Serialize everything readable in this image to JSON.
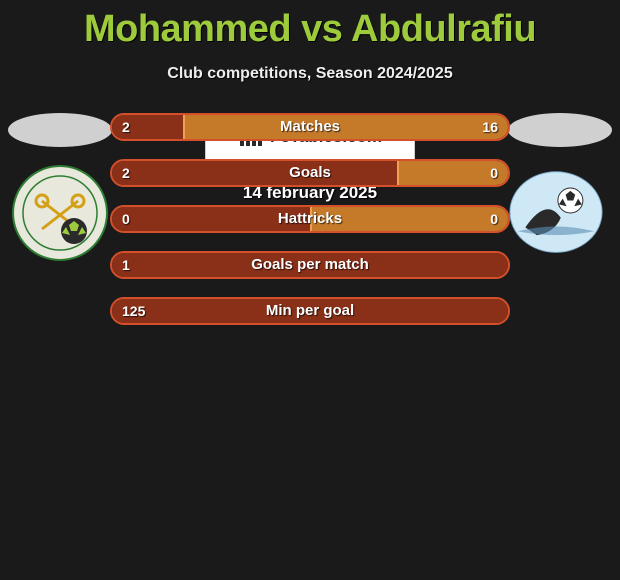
{
  "title": "Mohammed vs Abdulrafiu",
  "subtitle": "Club competitions, Season 2024/2025",
  "colors": {
    "left_border": "#d4502a",
    "left_fill": "#8a2f18",
    "right_border": "#f0a050",
    "right_fill": "#c57a2a",
    "accent": "#9ecb3c"
  },
  "rows": [
    {
      "label": "Matches",
      "left": "2",
      "right": "16",
      "left_pct": 18,
      "right_pct": 82
    },
    {
      "label": "Goals",
      "left": "2",
      "right": "0",
      "left_pct": 72,
      "right_pct": 28
    },
    {
      "label": "Hattricks",
      "left": "0",
      "right": "0",
      "left_pct": 50,
      "right_pct": 50
    },
    {
      "label": "Goals per match",
      "left": "1",
      "right": "",
      "left_pct": 100,
      "right_pct": 0
    },
    {
      "label": "Min per goal",
      "left": "125",
      "right": "",
      "left_pct": 100,
      "right_pct": 0
    }
  ],
  "brand": "FcTables.com",
  "date": "14 february 2025",
  "club_left": {
    "bg": "#e8e8dc",
    "ring": "#2e7d32"
  },
  "club_right": {
    "bg": "#cfe8f5"
  }
}
